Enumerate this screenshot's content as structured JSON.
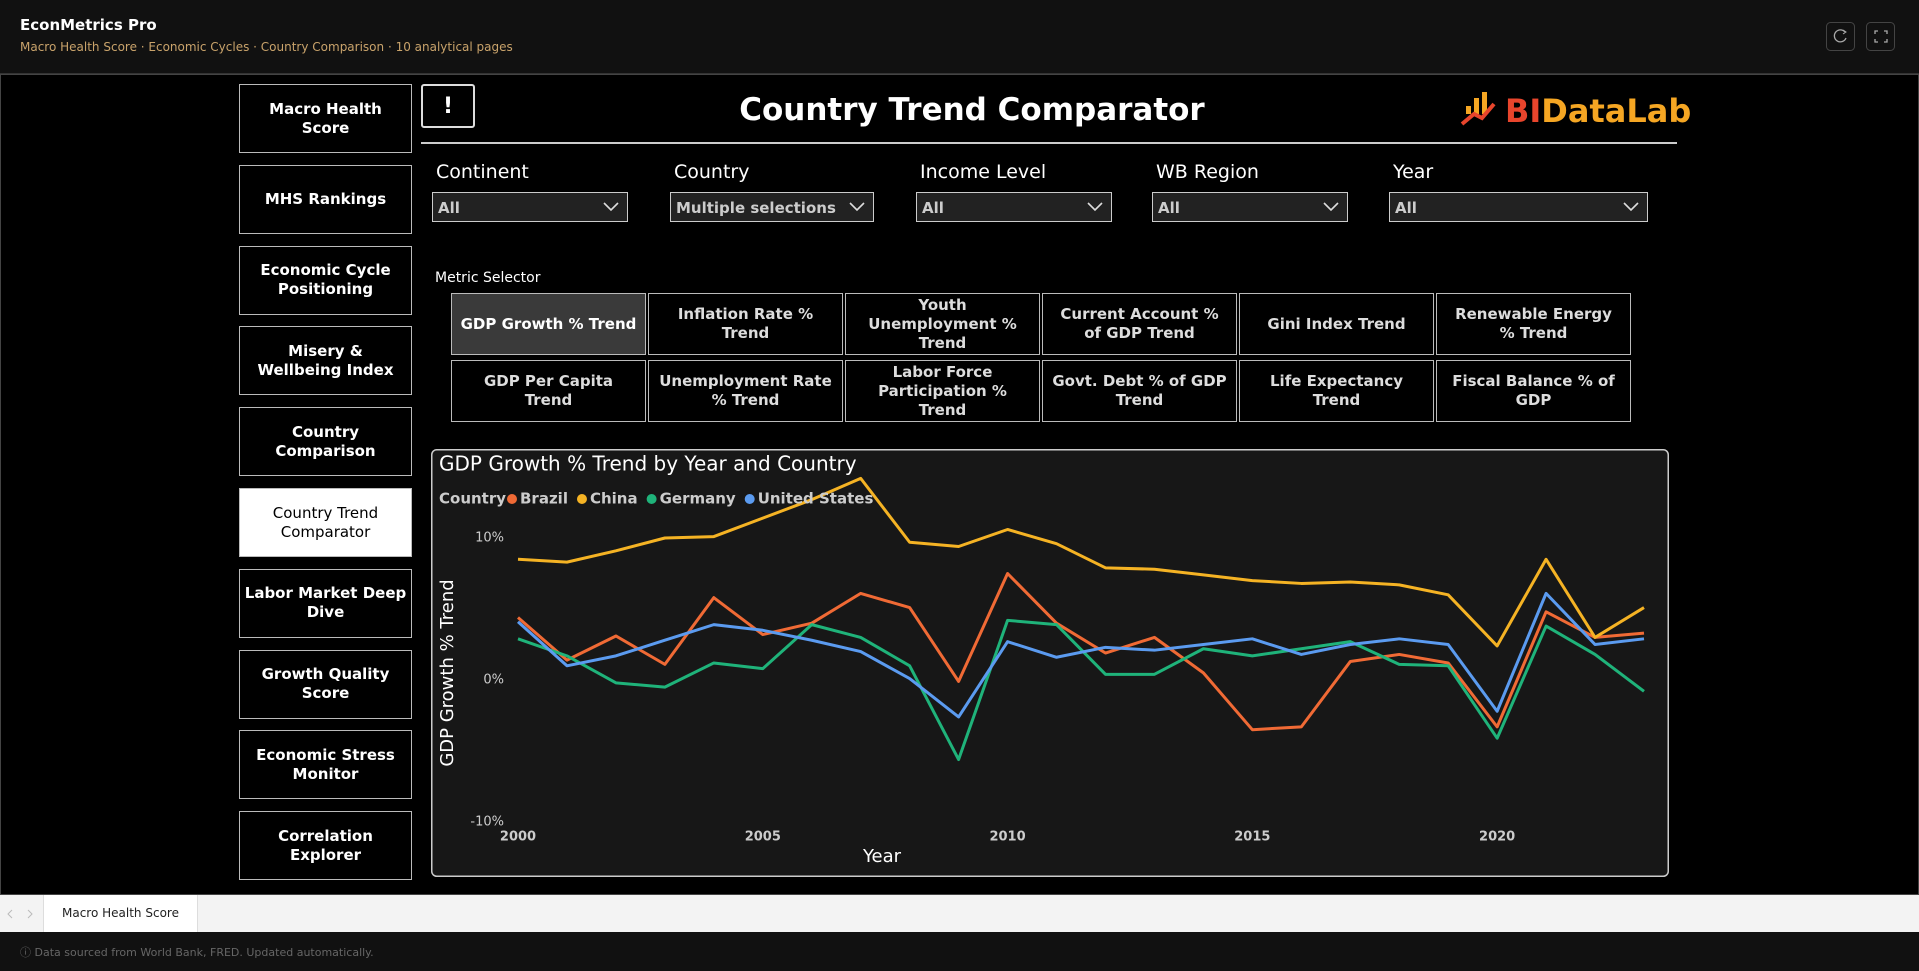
{
  "app": {
    "title": "EconMetrics Pro",
    "subtitle": "Macro Health Score · Economic Cycles · Country Comparison · 10 analytical pages"
  },
  "nav": {
    "items": [
      "Macro Health Score",
      "MHS Rankings",
      "Economic Cycle Positioning",
      "Misery & Wellbeing Index",
      "Country Comparison",
      "Country Trend Comparator",
      "Labor Market Deep Dive",
      "Growth Quality Score",
      "Economic Stress Monitor",
      "Correlation Explorer"
    ],
    "active": 5
  },
  "header": {
    "alert": "!",
    "title": "Country Trend Comparator",
    "logo_bi": "BI",
    "logo_rest": "DataLab"
  },
  "filters": [
    {
      "label": "Continent",
      "value": "All"
    },
    {
      "label": "Country",
      "value": "Multiple selections"
    },
    {
      "label": "Income Level",
      "value": "All"
    },
    {
      "label": "WB Region",
      "value": "All"
    },
    {
      "label": "Year",
      "value": "All"
    }
  ],
  "metric_selector": {
    "label": "Metric Selector",
    "buttons": [
      "GDP Growth % Trend",
      "Inflation Rate % Trend",
      "Youth Unemployment % Trend",
      "Current Account % of GDP Trend",
      "Gini Index Trend",
      "Renewable Energy % Trend",
      "GDP Per Capita Trend",
      "Unemployment Rate % Trend",
      "Labor Force Participation % Trend",
      "Govt. Debt % of GDP Trend",
      "Life Expectancy Trend",
      "Fiscal Balance % of GDP"
    ],
    "active": 0
  },
  "chart_data": {
    "type": "line",
    "title": "GDP Growth % Trend by Year and Country",
    "legend_title": "Country",
    "x_label": "Year",
    "y_label": "GDP Growth % Trend",
    "x": [
      2000,
      2001,
      2002,
      2003,
      2004,
      2005,
      2006,
      2007,
      2008,
      2009,
      2010,
      2011,
      2012,
      2013,
      2014,
      2015,
      2016,
      2017,
      2018,
      2019,
      2020,
      2021,
      2022,
      2023
    ],
    "xlim": [
      2000,
      2023
    ],
    "xticks": [
      2000,
      2005,
      2010,
      2015,
      2020
    ],
    "ylim": [
      -10,
      15
    ],
    "yticks": [
      {
        "value": -10,
        "label": "-10%"
      },
      {
        "value": 0,
        "label": "0%"
      },
      {
        "value": 10,
        "label": "10%"
      }
    ],
    "series": [
      {
        "name": "Brazil",
        "color": "#f06a35",
        "values": [
          4.4,
          1.4,
          3.1,
          1.1,
          5.8,
          3.2,
          4.0,
          6.1,
          5.1,
          -0.1,
          7.5,
          4.0,
          1.9,
          3.0,
          0.5,
          -3.5,
          -3.3,
          1.3,
          1.8,
          1.2,
          -3.3,
          4.8,
          3.0,
          3.3
        ]
      },
      {
        "name": "China",
        "color": "#f5b324",
        "values": [
          8.5,
          8.3,
          9.1,
          10.0,
          10.1,
          11.4,
          12.7,
          14.2,
          9.7,
          9.4,
          10.6,
          9.6,
          7.9,
          7.8,
          7.4,
          7.0,
          6.8,
          6.9,
          6.7,
          6.0,
          2.4,
          8.5,
          3.0,
          5.1
        ]
      },
      {
        "name": "Germany",
        "color": "#1fb37a",
        "values": [
          2.9,
          1.7,
          -0.2,
          -0.5,
          1.2,
          0.8,
          3.9,
          3.0,
          1.0,
          -5.6,
          4.2,
          3.9,
          0.4,
          0.4,
          2.2,
          1.7,
          2.2,
          2.7,
          1.1,
          1.0,
          -4.1,
          3.8,
          1.8,
          -0.8
        ]
      },
      {
        "name": "United States",
        "color": "#5b9bf0",
        "values": [
          4.1,
          1.0,
          1.7,
          2.8,
          3.9,
          3.5,
          2.8,
          2.0,
          0.1,
          -2.6,
          2.7,
          1.6,
          2.3,
          2.1,
          2.5,
          2.9,
          1.8,
          2.5,
          2.9,
          2.5,
          -2.2,
          6.1,
          2.5,
          2.9
        ]
      }
    ]
  },
  "tabs": [
    "Macro Health Score"
  ],
  "footer": {
    "info": "ⓘ  Data sourced from World Bank, FRED. Updated automatically."
  }
}
